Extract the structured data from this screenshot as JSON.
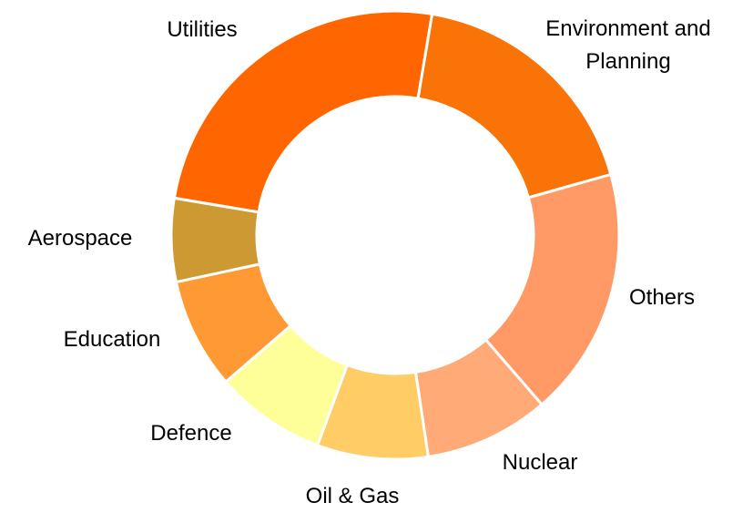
{
  "chart_data": {
    "type": "donut",
    "categories": [
      "Utilities",
      "Environment and Planning",
      "Others",
      "Nuclear",
      "Oil & Gas",
      "Defence",
      "Education",
      "Aerospace"
    ],
    "values": [
      25,
      18,
      18,
      9,
      8,
      8,
      8,
      6
    ],
    "colors": [
      "#ff6600",
      "#f97306",
      "#ff9966",
      "#ffaa77",
      "#ffcc66",
      "#ffff99",
      "#ff9933",
      "#cc9933"
    ]
  }
}
